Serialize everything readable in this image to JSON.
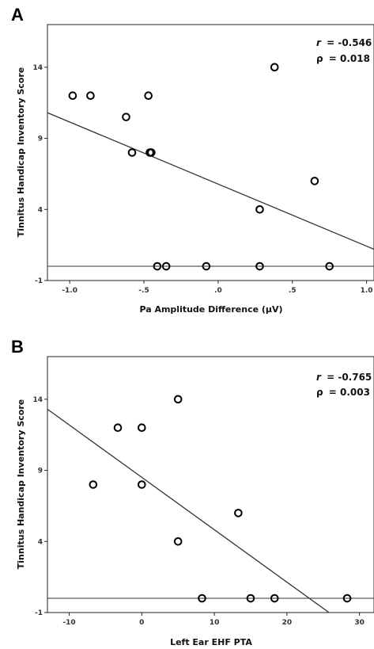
{
  "chart_data": [
    {
      "type": "scatter",
      "panel": "A",
      "xlabel": "Pa Amplitude Difference (μV)",
      "ylabel": "Tinnitus Handicap Inventory Score",
      "xlim": [
        -1.15,
        1.05
      ],
      "ylim": [
        -1,
        17
      ],
      "xticks": [
        -1.0,
        -0.5,
        0.0,
        0.5,
        1.0
      ],
      "xtick_labels": [
        "-1.0",
        "-.5",
        ".0",
        ".5",
        "1.0"
      ],
      "yticks": [
        -1,
        4,
        9,
        14
      ],
      "ytick_labels": [
        "-1",
        "4",
        "9",
        "14"
      ],
      "points": [
        {
          "x": -0.98,
          "y": 12
        },
        {
          "x": -0.86,
          "y": 12
        },
        {
          "x": -0.47,
          "y": 12
        },
        {
          "x": 0.38,
          "y": 14
        },
        {
          "x": -0.62,
          "y": 10.5
        },
        {
          "x": -0.58,
          "y": 8
        },
        {
          "x": -0.46,
          "y": 8
        },
        {
          "x": -0.45,
          "y": 8
        },
        {
          "x": 0.65,
          "y": 6
        },
        {
          "x": 0.28,
          "y": 4
        },
        {
          "x": -0.41,
          "y": 0
        },
        {
          "x": -0.35,
          "y": 0
        },
        {
          "x": -0.08,
          "y": 0
        },
        {
          "x": 0.28,
          "y": 0
        },
        {
          "x": 0.75,
          "y": 0
        }
      ],
      "fit_line": {
        "x": [
          -1.15,
          1.05
        ],
        "y": [
          10.8,
          1.2
        ]
      },
      "reference_line_y": 0,
      "stat_r_symbol": "r",
      "stat_r_value": "= -0.546",
      "stat_p_symbol": "ρ",
      "stat_p_value": "= 0.018"
    },
    {
      "type": "scatter",
      "panel": "B",
      "xlabel": "Left Ear EHF PTA",
      "ylabel": "Tinnitus Handicap Inventory Score",
      "xlim": [
        -13,
        32
      ],
      "ylim": [
        -1,
        17
      ],
      "xticks": [
        -10,
        0,
        10,
        20,
        30
      ],
      "xtick_labels": [
        "-10",
        "0",
        "10",
        "20",
        "30"
      ],
      "yticks": [
        -1,
        4,
        9,
        14
      ],
      "ytick_labels": [
        "-1",
        "4",
        "9",
        "14"
      ],
      "points": [
        {
          "x": 5,
          "y": 14
        },
        {
          "x": -3.3,
          "y": 12
        },
        {
          "x": 0,
          "y": 12
        },
        {
          "x": -6.7,
          "y": 8
        },
        {
          "x": 0,
          "y": 8
        },
        {
          "x": 13.3,
          "y": 6
        },
        {
          "x": 5,
          "y": 4
        },
        {
          "x": 8.3,
          "y": 0
        },
        {
          "x": 15,
          "y": 0
        },
        {
          "x": 18.3,
          "y": 0
        },
        {
          "x": 28.3,
          "y": 0
        }
      ],
      "fit_line": {
        "x": [
          -13,
          25.8
        ],
        "y": [
          13.3,
          -1
        ]
      },
      "reference_line_y": 0,
      "stat_r_symbol": "r",
      "stat_r_value": "= -0.765",
      "stat_p_symbol": "ρ",
      "stat_p_value": "= 0.003"
    }
  ]
}
